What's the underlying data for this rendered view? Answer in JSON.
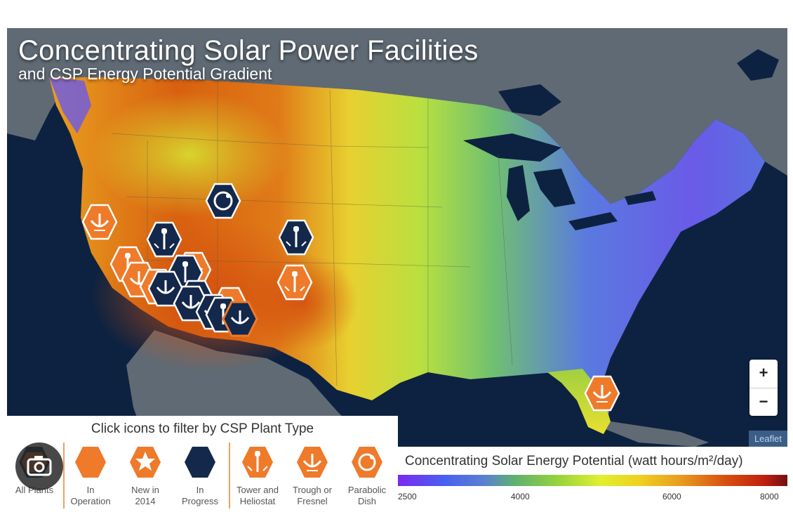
{
  "map": {
    "title": "Concentrating Solar Power Facilities",
    "subtitle": "and CSP Energy Potential Gradient",
    "attribution": "Leaflet",
    "zoom_in": "+",
    "zoom_out": "−",
    "colors": {
      "ocean": "#0d2240",
      "land_outside": "#5f6a74",
      "operation": "#ee7a2a",
      "in_progress": "#13284b"
    }
  },
  "filters": {
    "title": "Click icons to filter by CSP Plant Type",
    "items": [
      {
        "line1": "All Plants",
        "line2": ""
      },
      {
        "line1": "In",
        "line2": "Operation"
      },
      {
        "line1": "New in",
        "line2": "2014"
      },
      {
        "line1": "In",
        "line2": "Progress"
      },
      {
        "line1": "Tower and",
        "line2": "Heliostat"
      },
      {
        "line1": "Trough or",
        "line2": "Fresnel"
      },
      {
        "line1": "Parabolic",
        "line2": "Dish"
      }
    ]
  },
  "legend": {
    "title": "Concentrating Solar Energy Potential (watt hours/m²/day)",
    "ticks": [
      "2500",
      "4000",
      "6000",
      "8000"
    ]
  }
}
